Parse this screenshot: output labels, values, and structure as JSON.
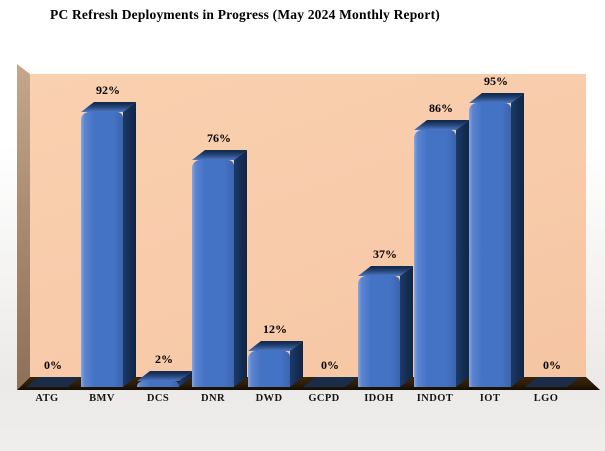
{
  "title": "PC Refresh Deployments in Progress (May 2024 Monthly Report)",
  "chart_data": {
    "type": "bar",
    "style": "3d-beveled-bars",
    "title": "PC Refresh Deployments in Progress (May 2024 Monthly Report)",
    "categories": [
      "ATG",
      "BMV",
      "DCS",
      "DNR",
      "DWD",
      "GCPD",
      "IDOH",
      "INDOT",
      "IOT",
      "LGO"
    ],
    "values": [
      0,
      92,
      2,
      76,
      12,
      0,
      37,
      86,
      95,
      0
    ],
    "data_labels": [
      "0%",
      "92%",
      "2%",
      "76%",
      "12%",
      "0%",
      "37%",
      "86%",
      "95%",
      "0%"
    ],
    "xlabel": "",
    "ylabel": "",
    "ylim": [
      0,
      100
    ],
    "unit": "%",
    "grid": false,
    "legend": "none",
    "colors": {
      "bar_face": "#4472C4",
      "bar_side": "#17375E",
      "zero_marker": "#1B2C49",
      "back_wall": "#F8CBAA",
      "side_wall": "#AB8C70",
      "floor": "#2D1C07",
      "label_text": "#000000",
      "page_background_top": "#FFFFFF",
      "page_background_bottom": "#EBEAE8"
    }
  }
}
